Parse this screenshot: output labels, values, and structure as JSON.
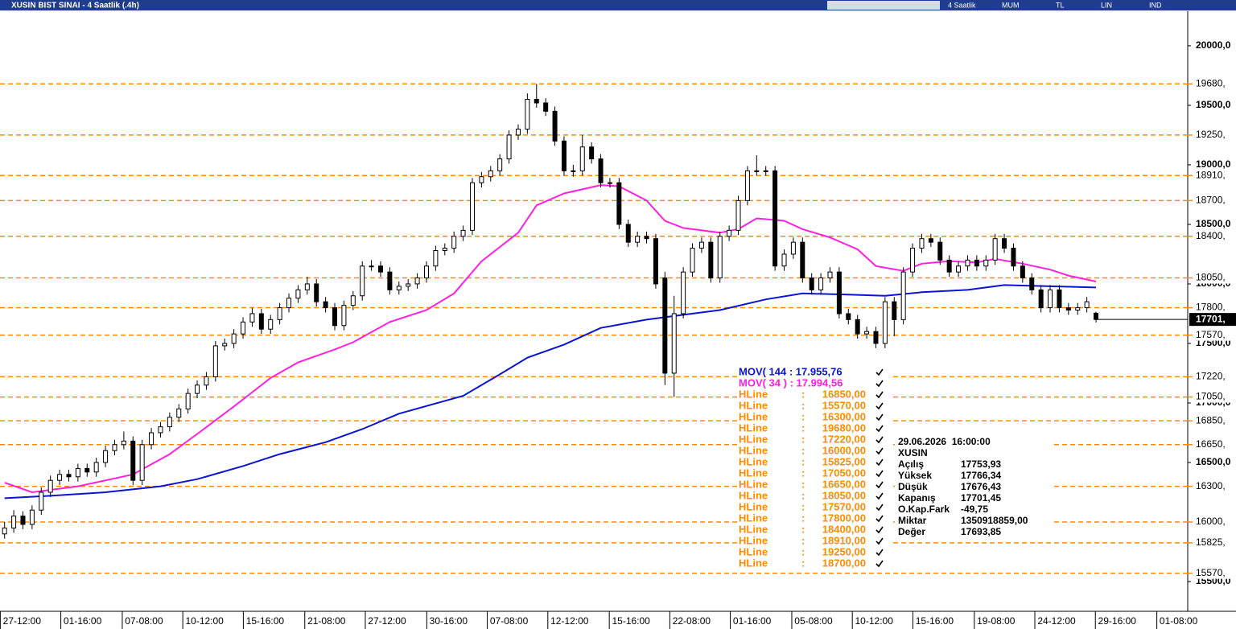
{
  "window": {
    "title": "XUSIN BIST SINAI - 4 Saatlik (.4h)",
    "toolbar": [
      "4 Saatlik",
      "MUM",
      "TL",
      "LIN",
      "IND"
    ]
  },
  "chart_data": {
    "type": "candlestick",
    "xlim": [
      -0.5,
      129
    ],
    "ylim": [
      15250,
      20290
    ],
    "xticks": [
      {
        "value": 1.9,
        "label": "27-12:00"
      },
      {
        "value": 8.5,
        "label": "01-16:00"
      },
      {
        "value": 15.2,
        "label": "07-08:00"
      },
      {
        "value": 21.8,
        "label": "10-12:00"
      },
      {
        "value": 28.4,
        "label": "15-16:00"
      },
      {
        "value": 35.1,
        "label": "21-08:00"
      },
      {
        "value": 41.7,
        "label": "27-12:00"
      },
      {
        "value": 48.4,
        "label": "30-16:00"
      },
      {
        "value": 55.0,
        "label": "07-08:00"
      },
      {
        "value": 61.6,
        "label": "12-12:00"
      },
      {
        "value": 68.3,
        "label": "15-16:00"
      },
      {
        "value": 74.9,
        "label": "22-08:00"
      },
      {
        "value": 81.5,
        "label": "01-16:00"
      },
      {
        "value": 88.2,
        "label": "05-08:00"
      },
      {
        "value": 94.8,
        "label": "10-12:00"
      },
      {
        "value": 101.4,
        "label": "15-16:00"
      },
      {
        "value": 108.1,
        "label": "19-08:00"
      },
      {
        "value": 114.7,
        "label": "24-12:00"
      },
      {
        "value": 121.3,
        "label": "29-16:00"
      },
      {
        "value": 128.0,
        "label": "01-08:00"
      }
    ],
    "yticks": [
      {
        "value": 15500,
        "label": "15500,0"
      },
      {
        "value": 16000,
        "label": "16000,0"
      },
      {
        "value": 16500,
        "label": "16500,0"
      },
      {
        "value": 17000,
        "label": "17000,0"
      },
      {
        "value": 17500,
        "label": "17500,0"
      },
      {
        "value": 18000,
        "label": "18000,0"
      },
      {
        "value": 18500,
        "label": "18500,0"
      },
      {
        "value": 19000,
        "label": "19000,0"
      },
      {
        "value": 19500,
        "label": "19500,0"
      },
      {
        "value": 20000,
        "label": "20000,0"
      }
    ],
    "up_color": "#ffffff",
    "down_color": "#000000",
    "ohlc": [
      [
        15900,
        16000,
        15860,
        15950
      ],
      [
        15950,
        16100,
        15910,
        16050
      ],
      [
        16050,
        16090,
        15940,
        15980
      ],
      [
        15980,
        16140,
        15940,
        16100
      ],
      [
        16100,
        16290,
        16060,
        16250
      ],
      [
        16250,
        16390,
        16210,
        16350
      ],
      [
        16350,
        16440,
        16310,
        16400
      ],
      [
        16400,
        16440,
        16340,
        16380
      ],
      [
        16380,
        16490,
        16340,
        16450
      ],
      [
        16450,
        16490,
        16380,
        16420
      ],
      [
        16420,
        16540,
        16380,
        16500
      ],
      [
        16500,
        16640,
        16460,
        16600
      ],
      [
        16600,
        16690,
        16560,
        16650
      ],
      [
        16650,
        16760,
        16610,
        16680
      ],
      [
        16680,
        16720,
        16310,
        16350
      ],
      [
        16350,
        16690,
        16310,
        16650
      ],
      [
        16650,
        16790,
        16610,
        16750
      ],
      [
        16750,
        16840,
        16710,
        16800
      ],
      [
        16800,
        16920,
        16760,
        16880
      ],
      [
        16880,
        16990,
        16840,
        16950
      ],
      [
        16950,
        17120,
        16910,
        17080
      ],
      [
        17080,
        17190,
        17040,
        17150
      ],
      [
        17150,
        17260,
        17110,
        17220
      ],
      [
        17220,
        17520,
        17180,
        17480
      ],
      [
        17480,
        17540,
        17440,
        17500
      ],
      [
        17500,
        17620,
        17460,
        17580
      ],
      [
        17580,
        17720,
        17540,
        17680
      ],
      [
        17680,
        17800,
        17640,
        17750
      ],
      [
        17750,
        17790,
        17580,
        17620
      ],
      [
        17620,
        17740,
        17580,
        17700
      ],
      [
        17700,
        17840,
        17660,
        17800
      ],
      [
        17800,
        17920,
        17760,
        17880
      ],
      [
        17880,
        17990,
        17840,
        17950
      ],
      [
        17950,
        18060,
        17910,
        18000
      ],
      [
        18000,
        18040,
        17810,
        17850
      ],
      [
        17850,
        17890,
        17760,
        17800
      ],
      [
        17800,
        17840,
        17610,
        17650
      ],
      [
        17650,
        17860,
        17610,
        17820
      ],
      [
        17820,
        17940,
        17780,
        17900
      ],
      [
        17900,
        18190,
        17860,
        18150
      ],
      [
        18150,
        18200,
        18110,
        18150
      ],
      [
        18150,
        18190,
        18060,
        18100
      ],
      [
        18100,
        18140,
        17910,
        17950
      ],
      [
        17950,
        18020,
        17910,
        17980
      ],
      [
        17980,
        18040,
        17940,
        18000
      ],
      [
        18000,
        18090,
        17960,
        18050
      ],
      [
        18050,
        18190,
        18010,
        18150
      ],
      [
        18150,
        18320,
        18110,
        18280
      ],
      [
        18280,
        18340,
        18240,
        18300
      ],
      [
        18300,
        18440,
        18260,
        18400
      ],
      [
        18400,
        18490,
        18360,
        18450
      ],
      [
        18450,
        18890,
        18410,
        18850
      ],
      [
        18850,
        18940,
        18810,
        18900
      ],
      [
        18900,
        18990,
        18860,
        18950
      ],
      [
        18950,
        19090,
        18910,
        19050
      ],
      [
        19050,
        19290,
        19010,
        19250
      ],
      [
        19250,
        19340,
        19210,
        19300
      ],
      [
        19300,
        19600,
        19260,
        19550
      ],
      [
        19550,
        19680,
        19480,
        19520
      ],
      [
        19520,
        19560,
        19410,
        19450
      ],
      [
        19450,
        19490,
        19160,
        19200
      ],
      [
        19200,
        19240,
        18910,
        18950
      ],
      [
        18950,
        19000,
        18900,
        18950
      ],
      [
        18950,
        19250,
        18910,
        19150
      ],
      [
        19150,
        19190,
        19010,
        19050
      ],
      [
        19050,
        19090,
        18810,
        18850
      ],
      [
        18850,
        18890,
        18810,
        18850
      ],
      [
        18850,
        18890,
        18460,
        18500
      ],
      [
        18500,
        18540,
        18310,
        18350
      ],
      [
        18350,
        18440,
        18310,
        18400
      ],
      [
        18400,
        18440,
        18340,
        18380
      ],
      [
        18380,
        18420,
        17960,
        18000
      ],
      [
        18050,
        18100,
        17150,
        17250
      ],
      [
        17250,
        17900,
        17050,
        17750
      ],
      [
        17750,
        18140,
        17710,
        18100
      ],
      [
        18100,
        18340,
        18060,
        18300
      ],
      [
        18300,
        18390,
        18260,
        18350
      ],
      [
        18350,
        18390,
        18010,
        18050
      ],
      [
        18050,
        18440,
        18010,
        18400
      ],
      [
        18400,
        18490,
        18360,
        18450
      ],
      [
        18450,
        18740,
        18410,
        18700
      ],
      [
        18700,
        18990,
        18660,
        18950
      ],
      [
        18950,
        19080,
        18910,
        18950
      ],
      [
        18950,
        18990,
        18910,
        18950
      ],
      [
        18950,
        18990,
        18110,
        18150
      ],
      [
        18150,
        18290,
        18110,
        18250
      ],
      [
        18250,
        18390,
        18210,
        18350
      ],
      [
        18350,
        18390,
        18010,
        18050
      ],
      [
        18050,
        18090,
        17910,
        17950
      ],
      [
        17950,
        18090,
        17910,
        18050
      ],
      [
        18050,
        18140,
        18010,
        18100
      ],
      [
        18100,
        18140,
        17710,
        17750
      ],
      [
        17750,
        17790,
        17660,
        17700
      ],
      [
        17700,
        17740,
        17540,
        17580
      ],
      [
        17580,
        17640,
        17540,
        17600
      ],
      [
        17600,
        17640,
        17460,
        17500
      ],
      [
        17500,
        17890,
        17460,
        17850
      ],
      [
        17850,
        17890,
        17560,
        17700
      ],
      [
        17700,
        18140,
        17660,
        18100
      ],
      [
        18100,
        18340,
        18060,
        18300
      ],
      [
        18300,
        18420,
        18260,
        18380
      ],
      [
        18380,
        18420,
        18310,
        18350
      ],
      [
        18350,
        18390,
        18160,
        18200
      ],
      [
        18200,
        18240,
        18060,
        18100
      ],
      [
        18100,
        18190,
        18060,
        18150
      ],
      [
        18150,
        18240,
        18110,
        18200
      ],
      [
        18200,
        18240,
        18110,
        18150
      ],
      [
        18150,
        18240,
        18110,
        18200
      ],
      [
        18200,
        18420,
        18160,
        18380
      ],
      [
        18380,
        18420,
        18260,
        18300
      ],
      [
        18300,
        18340,
        18110,
        18150
      ],
      [
        18150,
        18190,
        18010,
        18050
      ],
      [
        18050,
        18090,
        17910,
        17950
      ],
      [
        17950,
        17990,
        17760,
        17800
      ],
      [
        17800,
        17990,
        17760,
        17950
      ],
      [
        17950,
        17990,
        17760,
        17800
      ],
      [
        17800,
        17840,
        17740,
        17780
      ],
      [
        17780,
        17840,
        17740,
        17800
      ],
      [
        17800,
        17890,
        17760,
        17850
      ],
      [
        17753.93,
        17766.34,
        17676.43,
        17701.45
      ]
    ],
    "series": [
      {
        "name": "MOV( 144 : 17.955,76",
        "color": "#0a14d2",
        "x": [
          0,
          5,
          11,
          17,
          21,
          26,
          30,
          35,
          39,
          43,
          50,
          54,
          57,
          61,
          65,
          70,
          74,
          78,
          83,
          87,
          92,
          96,
          100,
          105,
          109,
          114,
          119
        ],
        "values": [
          16200,
          16220,
          16250,
          16300,
          16360,
          16470,
          16570,
          16670,
          16780,
          16910,
          17060,
          17240,
          17380,
          17490,
          17630,
          17700,
          17740,
          17780,
          17870,
          17920,
          17910,
          17900,
          17930,
          17950,
          17990,
          17980,
          17970
        ]
      },
      {
        "name": "MOV( 34 ) : 17.994,56",
        "color": "#ff20e0",
        "x": [
          0,
          3,
          8,
          14,
          18,
          21,
          25,
          29,
          32,
          36,
          38,
          42,
          46,
          49,
          52,
          56,
          58,
          61,
          65,
          67,
          70,
          72,
          74,
          78,
          80,
          82,
          85,
          87,
          90,
          93,
          95,
          98,
          100,
          103,
          106,
          108,
          111,
          114,
          116,
          119
        ],
        "values": [
          16330,
          16250,
          16300,
          16400,
          16570,
          16740,
          16970,
          17210,
          17340,
          17450,
          17510,
          17680,
          17780,
          17920,
          18190,
          18430,
          18660,
          18760,
          18830,
          18820,
          18700,
          18530,
          18470,
          18430,
          18460,
          18550,
          18530,
          18460,
          18390,
          18290,
          18150,
          18110,
          18170,
          18190,
          18180,
          18210,
          18170,
          18120,
          18070,
          18020
        ]
      }
    ],
    "hlines": {
      "name": "HLine",
      "color": "#ff8c00",
      "separator": ":",
      "values": [
        16850,
        15570,
        16300,
        19680,
        17220,
        16000,
        15825,
        17050,
        16650,
        18050,
        17570,
        17800,
        18400,
        18910,
        19250,
        18700
      ],
      "value_labels": [
        "16850,",
        "15570,",
        "16300,",
        "19680,",
        "17220,",
        "16000,",
        "15825,",
        "17050,",
        "16650,",
        "18050,",
        "17570,",
        "17800,",
        "18400,",
        "18910,",
        "19250,",
        "18700,"
      ],
      "legend_labels": [
        "16850,00",
        "15570,00",
        "16300,00",
        "19680,00",
        "17220,00",
        "16000,00",
        "15825,00",
        "17050,00",
        "16650,00",
        "18050,00",
        "17570,00",
        "17800,00",
        "18400,00",
        "18910,00",
        "19250,00",
        "18700,00"
      ]
    },
    "last_price": 17701.45,
    "last_price_label": "17701,"
  },
  "info": {
    "datetime": "29.06.2026  16:00:00",
    "symbol": "XUSIN",
    "rows": [
      [
        "Açılış",
        "17753,93"
      ],
      [
        "Yüksek",
        "17766,34"
      ],
      [
        "Düşük",
        "17676,43"
      ],
      [
        "Kapanış",
        "17701,45"
      ],
      [
        "O.Kap.Fark",
        "-49,75"
      ],
      [
        "Miktar",
        "1350918859,00"
      ],
      [
        "Değer",
        "17693,85"
      ]
    ]
  }
}
